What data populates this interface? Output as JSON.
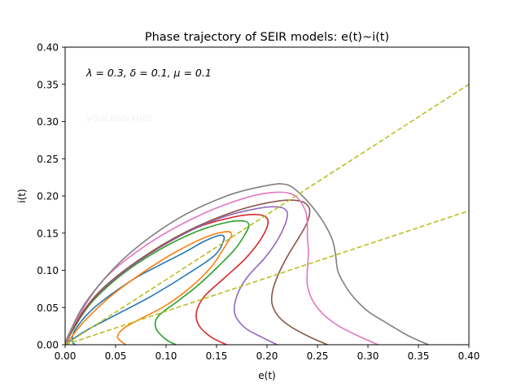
{
  "chart_data": {
    "type": "line",
    "title": "Phase trajectory of SEIR models: e(t)~i(t)",
    "xlabel": "e(t)",
    "ylabel": "i(t)",
    "xlim": [
      0.0,
      0.4
    ],
    "ylim": [
      0.0,
      0.4
    ],
    "xticks": [
      "0.00",
      "0.05",
      "0.10",
      "0.15",
      "0.20",
      "0.25",
      "0.30",
      "0.35",
      "0.40"
    ],
    "yticks": [
      "0.00",
      "0.05",
      "0.10",
      "0.15",
      "0.20",
      "0.25",
      "0.30",
      "0.35",
      "0.40"
    ],
    "grid": false,
    "legend": "none",
    "annotation": "λ = 0.3, δ = 0.1, μ = 0.1",
    "watermark": "youcans-xupt",
    "series": [
      {
        "color": "#1f77b4",
        "points": [
          [
            0.01,
            0.0
          ],
          [
            0.007,
            0.005
          ],
          [
            0.01,
            0.02
          ],
          [
            0.025,
            0.045
          ],
          [
            0.045,
            0.067
          ],
          [
            0.07,
            0.09
          ],
          [
            0.095,
            0.108
          ],
          [
            0.118,
            0.124
          ],
          [
            0.135,
            0.137
          ],
          [
            0.148,
            0.145
          ],
          [
            0.156,
            0.147
          ],
          [
            0.157,
            0.14
          ],
          [
            0.148,
            0.12
          ],
          [
            0.12,
            0.094
          ],
          [
            0.085,
            0.065
          ],
          [
            0.05,
            0.04
          ],
          [
            0.022,
            0.02
          ],
          [
            0.006,
            0.006
          ],
          [
            0.0,
            0.0
          ]
        ]
      },
      {
        "color": "#ff7f0e",
        "points": [
          [
            0.06,
            0.0
          ],
          [
            0.052,
            0.01
          ],
          [
            0.058,
            0.022
          ],
          [
            0.075,
            0.035
          ],
          [
            0.1,
            0.053
          ],
          [
            0.125,
            0.078
          ],
          [
            0.145,
            0.105
          ],
          [
            0.155,
            0.125
          ],
          [
            0.162,
            0.14
          ],
          [
            0.165,
            0.148
          ],
          [
            0.16,
            0.152
          ],
          [
            0.14,
            0.145
          ],
          [
            0.11,
            0.125
          ],
          [
            0.078,
            0.098
          ],
          [
            0.045,
            0.065
          ],
          [
            0.02,
            0.033
          ],
          [
            0.006,
            0.01
          ],
          [
            0.0,
            0.0
          ]
        ]
      },
      {
        "color": "#2ca02c",
        "points": [
          [
            0.11,
            0.0
          ],
          [
            0.1,
            0.007
          ],
          [
            0.09,
            0.022
          ],
          [
            0.092,
            0.038
          ],
          [
            0.11,
            0.057
          ],
          [
            0.13,
            0.078
          ],
          [
            0.15,
            0.103
          ],
          [
            0.168,
            0.128
          ],
          [
            0.178,
            0.148
          ],
          [
            0.182,
            0.16
          ],
          [
            0.178,
            0.166
          ],
          [
            0.162,
            0.165
          ],
          [
            0.13,
            0.152
          ],
          [
            0.09,
            0.125
          ],
          [
            0.055,
            0.093
          ],
          [
            0.025,
            0.055
          ],
          [
            0.007,
            0.018
          ],
          [
            0.0,
            0.0
          ]
        ]
      },
      {
        "color": "#d62728",
        "points": [
          [
            0.16,
            0.0
          ],
          [
            0.145,
            0.01
          ],
          [
            0.133,
            0.025
          ],
          [
            0.13,
            0.043
          ],
          [
            0.138,
            0.065
          ],
          [
            0.158,
            0.09
          ],
          [
            0.178,
            0.115
          ],
          [
            0.192,
            0.138
          ],
          [
            0.2,
            0.158
          ],
          [
            0.2,
            0.17
          ],
          [
            0.19,
            0.175
          ],
          [
            0.168,
            0.172
          ],
          [
            0.132,
            0.158
          ],
          [
            0.093,
            0.13
          ],
          [
            0.057,
            0.097
          ],
          [
            0.027,
            0.06
          ],
          [
            0.008,
            0.022
          ],
          [
            0.0,
            0.0
          ]
        ]
      },
      {
        "color": "#9467bd",
        "points": [
          [
            0.21,
            0.0
          ],
          [
            0.195,
            0.01
          ],
          [
            0.178,
            0.023
          ],
          [
            0.168,
            0.042
          ],
          [
            0.17,
            0.065
          ],
          [
            0.18,
            0.09
          ],
          [
            0.198,
            0.117
          ],
          [
            0.21,
            0.14
          ],
          [
            0.218,
            0.162
          ],
          [
            0.22,
            0.178
          ],
          [
            0.212,
            0.185
          ],
          [
            0.19,
            0.183
          ],
          [
            0.153,
            0.17
          ],
          [
            0.108,
            0.142
          ],
          [
            0.065,
            0.105
          ],
          [
            0.03,
            0.065
          ],
          [
            0.008,
            0.024
          ],
          [
            0.0,
            0.0
          ]
        ]
      },
      {
        "color": "#8c564b",
        "points": [
          [
            0.26,
            0.0
          ],
          [
            0.243,
            0.01
          ],
          [
            0.225,
            0.023
          ],
          [
            0.212,
            0.037
          ],
          [
            0.205,
            0.055
          ],
          [
            0.206,
            0.075
          ],
          [
            0.213,
            0.1
          ],
          [
            0.222,
            0.123
          ],
          [
            0.232,
            0.145
          ],
          [
            0.24,
            0.165
          ],
          [
            0.242,
            0.183
          ],
          [
            0.233,
            0.193
          ],
          [
            0.21,
            0.193
          ],
          [
            0.17,
            0.18
          ],
          [
            0.12,
            0.152
          ],
          [
            0.072,
            0.113
          ],
          [
            0.033,
            0.07
          ],
          [
            0.009,
            0.026
          ],
          [
            0.0,
            0.0
          ]
        ]
      },
      {
        "color": "#e377c2",
        "points": [
          [
            0.31,
            0.0
          ],
          [
            0.29,
            0.012
          ],
          [
            0.27,
            0.026
          ],
          [
            0.255,
            0.042
          ],
          [
            0.245,
            0.06
          ],
          [
            0.24,
            0.08
          ],
          [
            0.24,
            0.1
          ],
          [
            0.241,
            0.125
          ],
          [
            0.24,
            0.145
          ],
          [
            0.24,
            0.16
          ],
          [
            0.238,
            0.18
          ],
          [
            0.228,
            0.2
          ],
          [
            0.21,
            0.205
          ],
          [
            0.18,
            0.198
          ],
          [
            0.135,
            0.175
          ],
          [
            0.085,
            0.138
          ],
          [
            0.04,
            0.09
          ],
          [
            0.012,
            0.035
          ],
          [
            0.0,
            0.0
          ]
        ]
      },
      {
        "color": "#7f7f7f",
        "points": [
          [
            0.36,
            0.0
          ],
          [
            0.34,
            0.012
          ],
          [
            0.32,
            0.028
          ],
          [
            0.3,
            0.045
          ],
          [
            0.285,
            0.065
          ],
          [
            0.275,
            0.085
          ],
          [
            0.27,
            0.1
          ],
          [
            0.268,
            0.12
          ],
          [
            0.265,
            0.14
          ],
          [
            0.258,
            0.16
          ],
          [
            0.248,
            0.18
          ],
          [
            0.235,
            0.2
          ],
          [
            0.22,
            0.215
          ],
          [
            0.2,
            0.214
          ],
          [
            0.16,
            0.2
          ],
          [
            0.11,
            0.168
          ],
          [
            0.06,
            0.118
          ],
          [
            0.022,
            0.06
          ],
          [
            0.004,
            0.015
          ],
          [
            0.0,
            0.0
          ]
        ]
      }
    ],
    "reference_lines": [
      {
        "color": "#bcbd22",
        "style": "dashed",
        "points": [
          [
            0.0,
            0.0
          ],
          [
            0.4,
            0.35
          ]
        ]
      },
      {
        "color": "#bcbd22",
        "style": "dashed",
        "points": [
          [
            0.0,
            0.0
          ],
          [
            0.4,
            0.18
          ]
        ]
      }
    ]
  }
}
